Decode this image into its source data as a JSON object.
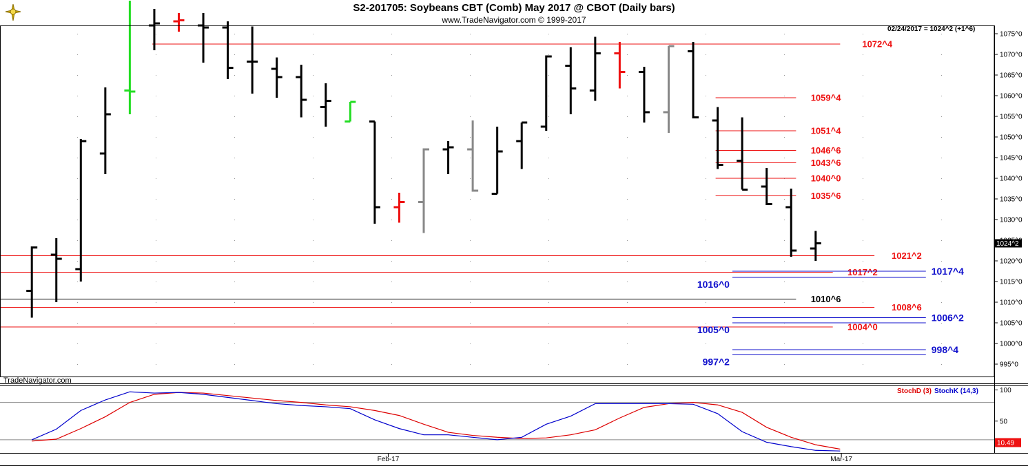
{
  "header": {
    "title": "S2-201705:  Soybeans CBT (Comb) May 2017 @ CBOT  (Daily bars)",
    "subtitle": "www.TradeNavigator.com © 1999-2017",
    "last_tick": "02/24/2017 = 1024^2 (+1^6)",
    "watermark": "TradeNavigator.com"
  },
  "chart_data": [
    {
      "type": "ohlc",
      "title": "S2-201705:  Soybeans CBT (Comb) May 2017 @ CBOT  (Daily bars)",
      "ylim": [
        992,
        1077
      ],
      "y_tick_labels": [
        "1075^0",
        "1070^0",
        "1065^0",
        "1060^0",
        "1055^0",
        "1050^0",
        "1045^0",
        "1040^0",
        "1035^0",
        "1030^0",
        "1025^0",
        "1020^0",
        "1015^0",
        "1010^0",
        "1005^0",
        "1000^0",
        "995^0"
      ],
      "y_tick_values": [
        1075,
        1070,
        1065,
        1060,
        1055,
        1050,
        1045,
        1040,
        1035,
        1030,
        1025,
        1020,
        1015,
        1010,
        1005,
        1000,
        995
      ],
      "x_labels": [
        "Feb-17",
        "Mar-17"
      ],
      "last_price_label": "1024^2",
      "last_price_value": 1024.25,
      "colors": {
        "black": "#000000",
        "green": "#22dd22",
        "red": "#ee1111",
        "gray": "#888888"
      },
      "bars": [
        {
          "o": 1012.75,
          "h": 1023.5,
          "l": 1006.25,
          "c": 1023.25,
          "color": "black"
        },
        {
          "o": 1021.5,
          "h": 1025.5,
          "l": 1010.0,
          "c": 1020.5,
          "color": "black"
        },
        {
          "o": 1018.0,
          "h": 1049.5,
          "l": 1015.0,
          "c": 1049.0,
          "color": "black"
        },
        {
          "o": 1046.0,
          "h": 1062.0,
          "l": 1041.0,
          "c": 1055.5,
          "color": "black"
        },
        {
          "o": 1061.25,
          "h": 1083.0,
          "l": 1055.5,
          "c": 1061.0,
          "color": "green"
        },
        {
          "o": 1077.0,
          "h": 1081.0,
          "l": 1071.0,
          "c": 1077.5,
          "color": "black"
        },
        {
          "o": 1078.0,
          "h": 1080.0,
          "l": 1075.5,
          "c": 1078.25,
          "color": "red"
        },
        {
          "o": 1077.0,
          "h": 1080.0,
          "l": 1068.0,
          "c": 1076.5,
          "color": "black"
        },
        {
          "o": 1076.5,
          "h": 1078.0,
          "l": 1064.0,
          "c": 1066.75,
          "color": "black"
        },
        {
          "o": 1068.25,
          "h": 1076.75,
          "l": 1060.5,
          "c": 1068.25,
          "color": "black"
        },
        {
          "o": 1066.5,
          "h": 1069.25,
          "l": 1059.5,
          "c": 1064.5,
          "color": "black"
        },
        {
          "o": 1064.5,
          "h": 1067.5,
          "l": 1054.75,
          "c": 1059.0,
          "color": "black"
        },
        {
          "o": 1057.25,
          "h": 1063.0,
          "l": 1052.5,
          "c": 1058.75,
          "color": "black"
        },
        {
          "o": 1053.75,
          "h": 1058.5,
          "l": 1053.75,
          "c": 1058.5,
          "color": "green"
        },
        {
          "o": 1053.75,
          "h": 1053.75,
          "l": 1029.0,
          "c": 1033.0,
          "color": "black"
        },
        {
          "o": 1033.0,
          "h": 1036.5,
          "l": 1029.25,
          "c": 1034.25,
          "color": "red"
        },
        {
          "o": 1034.25,
          "h": 1047.25,
          "l": 1026.75,
          "c": 1047.0,
          "color": "gray"
        },
        {
          "o": 1047.0,
          "h": 1049.0,
          "l": 1041.0,
          "c": 1047.5,
          "color": "black"
        },
        {
          "o": 1047.0,
          "h": 1054.0,
          "l": 1036.75,
          "c": 1037.0,
          "color": "gray"
        },
        {
          "o": 1036.25,
          "h": 1052.5,
          "l": 1036.25,
          "c": 1046.5,
          "color": "black"
        },
        {
          "o": 1049.0,
          "h": 1053.5,
          "l": 1042.25,
          "c": 1053.5,
          "color": "black"
        },
        {
          "o": 1052.5,
          "h": 1069.75,
          "l": 1051.5,
          "c": 1069.5,
          "color": "black"
        },
        {
          "o": 1067.25,
          "h": 1071.75,
          "l": 1055.5,
          "c": 1061.75,
          "color": "black"
        },
        {
          "o": 1061.25,
          "h": 1074.25,
          "l": 1058.75,
          "c": 1070.25,
          "color": "black"
        },
        {
          "o": 1070.25,
          "h": 1073.0,
          "l": 1061.75,
          "c": 1065.75,
          "color": "red"
        },
        {
          "o": 1065.75,
          "h": 1067.0,
          "l": 1053.5,
          "c": 1056.0,
          "color": "black"
        },
        {
          "o": 1056.0,
          "h": 1072.0,
          "l": 1051.0,
          "c": 1072.0,
          "color": "gray"
        },
        {
          "o": 1070.75,
          "h": 1073.0,
          "l": 1054.5,
          "c": 1054.75,
          "color": "black"
        },
        {
          "o": 1054.0,
          "h": 1057.25,
          "l": 1042.25,
          "c": 1043.25,
          "color": "black"
        },
        {
          "o": 1044.25,
          "h": 1054.75,
          "l": 1037.25,
          "c": 1037.25,
          "color": "black"
        },
        {
          "o": 1038.0,
          "h": 1042.5,
          "l": 1033.5,
          "c": 1033.75,
          "color": "black"
        },
        {
          "o": 1033.0,
          "h": 1037.5,
          "l": 1021.0,
          "c": 1022.5,
          "color": "black"
        },
        {
          "o": 1023.0,
          "h": 1027.25,
          "l": 1020.0,
          "c": 1024.25,
          "color": "black"
        }
      ],
      "levels": [
        {
          "label": "1072^4",
          "value": 1072.5,
          "color": "red",
          "start_bar": 5,
          "end_bar": 33,
          "label_bar": 33.9
        },
        {
          "label": "1059^4",
          "value": 1059.5,
          "color": "red",
          "start_bar": 28,
          "end_bar": 31.2,
          "label_bar": 31.8
        },
        {
          "label": "1051^4",
          "value": 1051.5,
          "color": "red",
          "start_bar": 28,
          "end_bar": 31.2,
          "label_bar": 31.8
        },
        {
          "label": "1046^6",
          "value": 1046.75,
          "color": "red",
          "start_bar": 28,
          "end_bar": 31.2,
          "label_bar": 31.8
        },
        {
          "label": "1043^6",
          "value": 1043.75,
          "color": "red",
          "start_bar": 28,
          "end_bar": 31.2,
          "label_bar": 31.8
        },
        {
          "label": "1040^0",
          "value": 1040.0,
          "color": "red",
          "start_bar": 28,
          "end_bar": 31.2,
          "label_bar": 31.8
        },
        {
          "label": "1035^6",
          "value": 1035.75,
          "color": "red",
          "start_bar": 28,
          "end_bar": 31.2,
          "label_bar": 31.8
        },
        {
          "label": "1021^2",
          "value": 1021.25,
          "color": "red",
          "start_bar": 0,
          "end_bar": 34.4,
          "label_bar": 35.1
        },
        {
          "label": "1017^2",
          "value": 1017.25,
          "color": "red",
          "start_bar": 0,
          "end_bar": 32.7,
          "label_bar": 33.3
        },
        {
          "label": "1010^6",
          "value": 1010.75,
          "color": "black",
          "start_bar": 0,
          "end_bar": 31.2,
          "label_bar": 31.8
        },
        {
          "label": "1008^6",
          "value": 1008.75,
          "color": "red",
          "start_bar": 0,
          "end_bar": 34.4,
          "label_bar": 35.1
        },
        {
          "label": "1004^0",
          "value": 1004.0,
          "color": "red",
          "start_bar": 0,
          "end_bar": 32.7,
          "label_bar": 33.3
        }
      ],
      "projections": [
        {
          "label": "1017^4",
          "value": 1017.5,
          "side": "right",
          "color": "blue"
        },
        {
          "label": "1016^0",
          "value": 1016.0,
          "side": "left",
          "color": "blue"
        },
        {
          "label": "1006^2",
          "value": 1006.25,
          "side": "right",
          "color": "blue"
        },
        {
          "label": "1005^0",
          "value": 1005.0,
          "side": "left",
          "color": "blue"
        },
        {
          "label": "998^4",
          "value": 998.5,
          "side": "right",
          "color": "blue"
        },
        {
          "label": "997^2",
          "value": 997.25,
          "side": "left",
          "color": "blue"
        }
      ]
    },
    {
      "type": "line",
      "ylim": [
        0,
        105
      ],
      "y_tick_labels": [
        "100",
        "50"
      ],
      "y_tick_values": [
        100,
        50
      ],
      "reference_lines": [
        80,
        20
      ],
      "last_value_label": "10.49",
      "series": [
        {
          "name": "StochD (3)",
          "color": "#dd0000",
          "values": [
            18,
            21,
            38,
            57,
            80,
            93,
            96,
            95,
            91,
            87,
            83,
            80,
            76,
            73,
            67,
            59,
            45,
            32,
            27,
            24,
            22,
            23,
            28,
            36,
            55,
            72,
            78,
            80,
            76,
            64,
            40,
            24,
            12,
            5
          ]
        },
        {
          "name": "StochK (14,3)",
          "color": "#0000cc",
          "values": [
            20,
            37,
            67,
            84,
            97,
            95,
            96,
            93,
            88,
            83,
            78,
            75,
            73,
            70,
            52,
            38,
            28,
            28,
            24,
            20,
            24,
            45,
            58,
            78,
            78,
            78,
            78,
            77,
            62,
            33,
            16,
            9,
            3,
            2
          ]
        }
      ]
    }
  ]
}
